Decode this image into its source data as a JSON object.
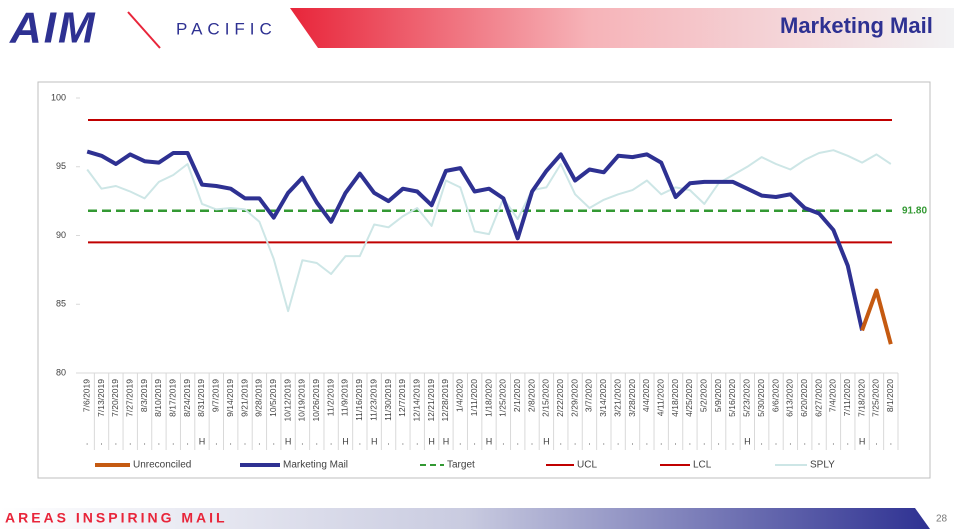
{
  "header": {
    "logo": "AIM",
    "logo_sub": "PACIFIC",
    "title": "Marketing Mail"
  },
  "footer": {
    "tagline": "AREAS INSPIRING MAIL",
    "page_number": "28"
  },
  "chart_data": {
    "type": "line",
    "categories": [
      "7/6/2019",
      "7/13/2019",
      "7/20/2019",
      "7/27/2019",
      "8/3/2019",
      "8/10/2019",
      "8/17/2019",
      "8/24/2019",
      "8/31/2019",
      "9/7/2019",
      "9/14/2019",
      "9/21/2019",
      "9/28/2019",
      "10/5/2019",
      "10/12/2019",
      "10/19/2019",
      "10/26/2019",
      "11/2/2019",
      "11/9/2019",
      "11/16/2019",
      "11/23/2019",
      "11/30/2019",
      "12/7/2019",
      "12/14/2019",
      "12/21/2019",
      "12/28/2019",
      "1/4/2020",
      "1/11/2020",
      "1/18/2020",
      "1/25/2020",
      "2/1/2020",
      "2/8/2020",
      "2/15/2020",
      "2/22/2020",
      "2/29/2020",
      "3/7/2020",
      "3/14/2020",
      "3/21/2020",
      "3/28/2020",
      "4/4/2020",
      "4/11/2020",
      "4/18/2020",
      "4/25/2020",
      "5/2/2020",
      "5/9/2020",
      "5/16/2020",
      "5/23/2020",
      "5/30/2020",
      "6/6/2020",
      "6/13/2020",
      "6/20/2020",
      "6/27/2020",
      "7/4/2020",
      "7/11/2020",
      "7/18/2020",
      "7/25/2020",
      "8/1/2020"
    ],
    "holiday_markers": [
      ".",
      ".",
      ".",
      ".",
      ".",
      ".",
      ".",
      ".",
      "H",
      ".",
      ".",
      ".",
      ".",
      ".",
      "H",
      ".",
      ".",
      ".",
      "H",
      ".",
      "H",
      ".",
      ".",
      ".",
      "H",
      "H",
      ".",
      ".",
      "H",
      ".",
      ".",
      ".",
      "H",
      ".",
      ".",
      ".",
      ".",
      ".",
      ".",
      ".",
      ".",
      ".",
      ".",
      ".",
      ".",
      ".",
      "H",
      ".",
      ".",
      ".",
      ".",
      ".",
      ".",
      ".",
      "H",
      ".",
      "."
    ],
    "series": [
      {
        "name": "Unreconciled",
        "color": "#c55a11",
        "values": [
          null,
          null,
          null,
          null,
          null,
          null,
          null,
          null,
          null,
          null,
          null,
          null,
          null,
          null,
          null,
          null,
          null,
          null,
          null,
          null,
          null,
          null,
          null,
          null,
          null,
          null,
          null,
          null,
          null,
          null,
          null,
          null,
          null,
          null,
          null,
          null,
          null,
          null,
          null,
          null,
          null,
          null,
          null,
          null,
          null,
          null,
          null,
          null,
          null,
          null,
          null,
          null,
          null,
          null,
          83.1,
          86.0,
          82.1
        ]
      },
      {
        "name": "Marketing Mail",
        "color": "#2e3192",
        "values": [
          96.1,
          95.8,
          95.2,
          95.9,
          95.4,
          95.3,
          96.0,
          96.0,
          93.7,
          93.6,
          93.4,
          92.7,
          92.7,
          91.3,
          93.1,
          94.2,
          92.4,
          91.0,
          93.1,
          94.5,
          93.1,
          92.5,
          93.4,
          93.2,
          92.2,
          94.7,
          94.9,
          93.2,
          93.4,
          92.7,
          89.8,
          93.2,
          94.7,
          95.9,
          94.0,
          94.8,
          94.6,
          95.8,
          95.7,
          95.9,
          95.3,
          92.8,
          93.8,
          93.9,
          93.9,
          93.9,
          93.4,
          92.9,
          92.8,
          93.0,
          92.0,
          91.6,
          90.4,
          87.8,
          83.1,
          null,
          null
        ]
      },
      {
        "name": "SPLY",
        "color": "#cde6e6",
        "values": [
          94.8,
          93.4,
          93.6,
          93.2,
          92.7,
          93.9,
          94.4,
          95.2,
          92.3,
          91.9,
          92.0,
          91.9,
          91.0,
          88.3,
          84.5,
          88.2,
          88.0,
          87.2,
          88.5,
          88.5,
          90.8,
          90.6,
          91.4,
          92.0,
          90.7,
          94.0,
          93.5,
          90.3,
          90.1,
          92.7,
          91.2,
          93.3,
          93.5,
          95.2,
          93.0,
          92.0,
          92.6,
          93.0,
          93.3,
          94.0,
          93.0,
          93.5,
          93.3,
          92.3,
          93.8,
          94.4,
          95.0,
          95.7,
          95.2,
          94.8,
          95.5,
          96.0,
          96.2,
          95.8,
          95.3,
          95.9,
          95.2
        ]
      }
    ],
    "reference_lines": [
      {
        "name": "Target",
        "value": 91.8,
        "value_label": "91.80",
        "color": "#339933",
        "dashed": true
      },
      {
        "name": "UCL",
        "value": 98.4,
        "color": "#c00000",
        "dashed": false
      },
      {
        "name": "LCL",
        "value": 89.5,
        "color": "#c00000",
        "dashed": false
      }
    ],
    "ylim": [
      80,
      100
    ],
    "yticks": [
      80,
      85,
      90,
      95,
      100
    ],
    "grid": false
  }
}
